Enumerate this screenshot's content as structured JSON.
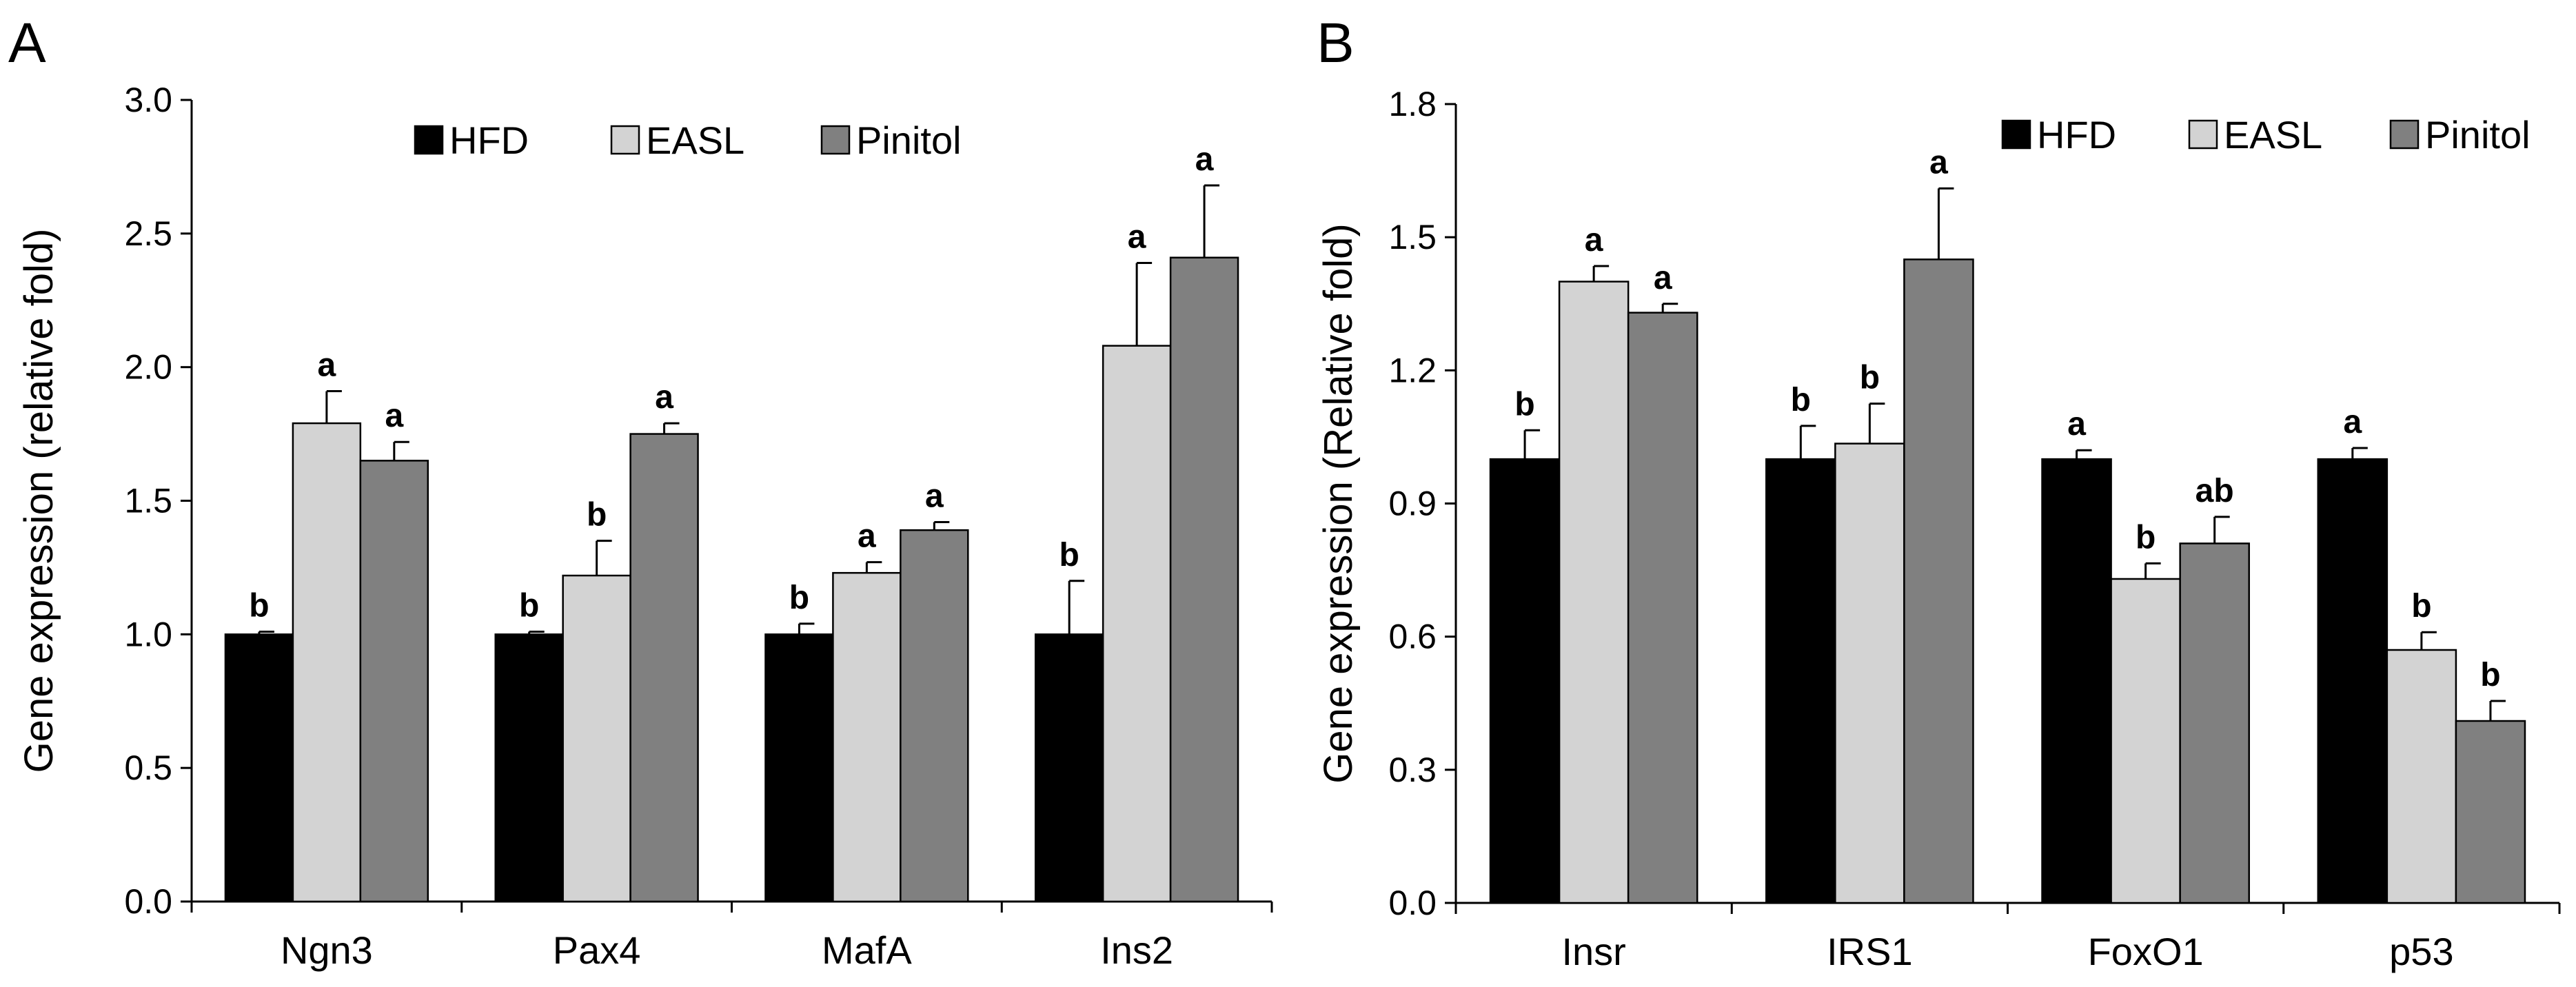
{
  "colors": {
    "HFD": "#000000",
    "EASL": "#d3d3d3",
    "Pinitol": "#808080",
    "axis": "#000000"
  },
  "chart_data": [
    {
      "panel_label": "A",
      "type": "bar",
      "title": "",
      "xlabel": "",
      "ylabel": "Gene expression (relative fold)",
      "ylim": [
        0,
        3.0
      ],
      "yticks": [
        "0.0",
        "0.5",
        "1.0",
        "1.5",
        "2.0",
        "2.5",
        "3.0"
      ],
      "grid": false,
      "legend_position": "top-right",
      "categories": [
        "Ngn3",
        "Pax4",
        "MafA",
        "Ins2"
      ],
      "series": [
        {
          "name": "HFD",
          "values": [
            1.0,
            1.0,
            1.0,
            1.0
          ],
          "errors": [
            0.01,
            0.01,
            0.04,
            0.2
          ],
          "labels": [
            "b",
            "b",
            "b",
            "b"
          ]
        },
        {
          "name": "EASL",
          "values": [
            1.79,
            1.22,
            1.23,
            2.08
          ],
          "errors": [
            0.12,
            0.13,
            0.04,
            0.31
          ],
          "labels": [
            "a",
            "b",
            "a",
            "a"
          ]
        },
        {
          "name": "Pinitol",
          "values": [
            1.65,
            1.75,
            1.39,
            2.41
          ],
          "errors": [
            0.07,
            0.04,
            0.03,
            0.27
          ],
          "labels": [
            "a",
            "a",
            "a",
            "a"
          ]
        }
      ]
    },
    {
      "panel_label": "B",
      "type": "bar",
      "title": "",
      "xlabel": "",
      "ylabel": "Gene expression (Relative fold)",
      "ylim": [
        0,
        1.8
      ],
      "yticks": [
        "0.0",
        "0.3",
        "0.6",
        "0.9",
        "1.2",
        "1.5",
        "1.8"
      ],
      "grid": false,
      "legend_position": "top-right",
      "categories": [
        "Insr",
        "IRS1",
        "FoxO1",
        "p53"
      ],
      "series": [
        {
          "name": "HFD",
          "values": [
            1.0,
            1.0,
            1.0,
            1.0
          ],
          "errors": [
            0.065,
            0.075,
            0.02,
            0.025
          ],
          "labels": [
            "b",
            "b",
            "a",
            "a"
          ]
        },
        {
          "name": "EASL",
          "values": [
            1.4,
            1.035,
            0.73,
            0.57
          ],
          "errors": [
            0.035,
            0.09,
            0.035,
            0.04
          ],
          "labels": [
            "a",
            "b",
            "b",
            "b"
          ]
        },
        {
          "name": "Pinitol",
          "values": [
            1.33,
            1.45,
            0.81,
            0.41
          ],
          "errors": [
            0.02,
            0.16,
            0.06,
            0.045
          ],
          "labels": [
            "a",
            "a",
            "ab",
            "b"
          ]
        }
      ]
    }
  ]
}
